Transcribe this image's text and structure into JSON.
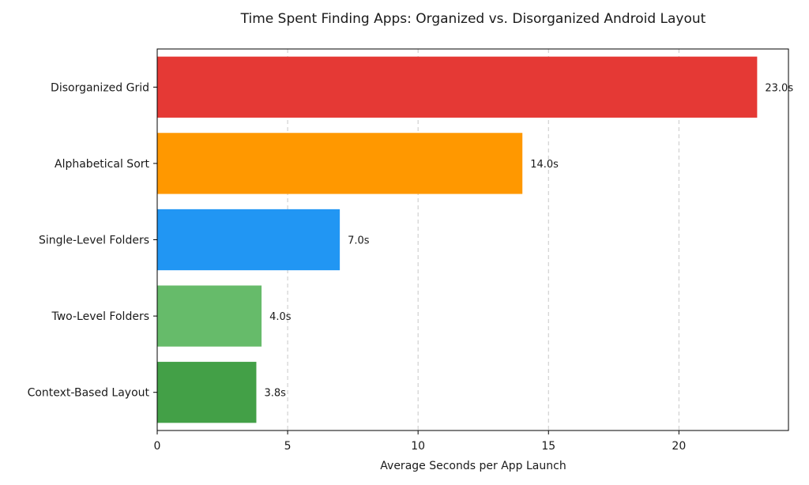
{
  "chart_data": {
    "type": "bar",
    "orientation": "horizontal",
    "title": "Time Spent Finding Apps: Organized vs. Disorganized Android Layout",
    "xlabel": "Average Seconds per App Launch",
    "ylabel": "",
    "xlim": [
      0,
      24.2
    ],
    "xticks": [
      0,
      5,
      10,
      15,
      20
    ],
    "grid": "x-dashed",
    "categories": [
      "Disorganized Grid",
      "Alphabetical Sort",
      "Single-Level Folders",
      "Two-Level Folders",
      "Context-Based Layout"
    ],
    "values": [
      23.0,
      14.0,
      7.0,
      4.0,
      3.8
    ],
    "data_labels": [
      "23.0s",
      "14.0s",
      "7.0s",
      "4.0s",
      "3.8s"
    ],
    "colors": [
      "#e53935",
      "#ff9800",
      "#2196f3",
      "#66bb6a",
      "#43a047"
    ]
  }
}
